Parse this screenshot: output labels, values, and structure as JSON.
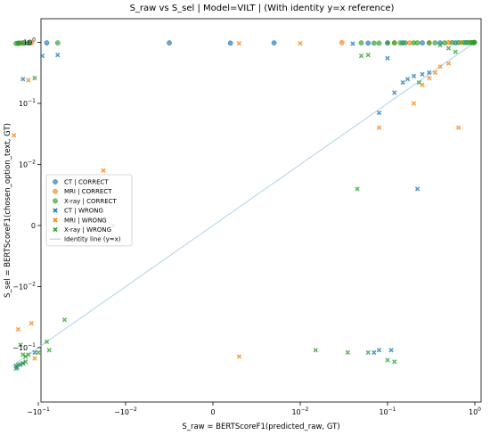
{
  "chart_data": {
    "type": "scatter",
    "title": "S_raw vs S_sel | Model=VILT | (With identity y=x reference)",
    "xlabel": "S_raw = BERTScoreF1(predicted_raw, GT)",
    "ylabel": "S_sel = BERTScoreF1(chosen_option_text, GT)",
    "scale": "symlog",
    "linthresh": 0.01,
    "xlim": [
      -0.2,
      1.0
    ],
    "ylim": [
      -0.25,
      1.4
    ],
    "grid": false,
    "legend_position": "center-left",
    "x_ticks": [
      {
        "value": -0.1,
        "label": "−10",
        "sup": "−1"
      },
      {
        "value": -0.01,
        "label": "−10",
        "sup": "−2"
      },
      {
        "value": 0,
        "label": "0",
        "sup": ""
      },
      {
        "value": 0.01,
        "label": "10",
        "sup": "−2"
      },
      {
        "value": 0.1,
        "label": "10",
        "sup": "−1"
      },
      {
        "value": 1,
        "label": "10",
        "sup": "0"
      }
    ],
    "y_ticks": [
      {
        "value": -0.1,
        "label": "−10",
        "sup": "−1"
      },
      {
        "value": -0.01,
        "label": "−10",
        "sup": "−2"
      },
      {
        "value": 0,
        "label": "0",
        "sup": ""
      },
      {
        "value": 0.01,
        "label": "10",
        "sup": "−2"
      },
      {
        "value": 0.1,
        "label": "10",
        "sup": "−1"
      },
      {
        "value": 1,
        "label": "10",
        "sup": "0"
      }
    ],
    "series": [
      {
        "name": "CT | CORRECT",
        "marker": "circle",
        "color": "#1f77b4",
        "points": [
          [
            -0.17,
            0.97
          ],
          [
            -0.15,
            0.98
          ],
          [
            -0.13,
            0.98
          ],
          [
            -0.08,
            0.98
          ],
          [
            -0.005,
            0.98
          ],
          [
            0.002,
            0.97
          ],
          [
            0.007,
            0.98
          ],
          [
            0.06,
            0.97
          ],
          [
            0.1,
            0.98
          ],
          [
            0.15,
            0.98
          ],
          [
            0.25,
            0.98
          ],
          [
            0.4,
            0.98
          ],
          [
            0.6,
            0.98
          ],
          [
            0.8,
            0.99
          ],
          [
            0.95,
            0.99
          ],
          [
            0.98,
            0.99
          ]
        ]
      },
      {
        "name": "MRI | CORRECT",
        "marker": "circle",
        "color": "#ff7f0e",
        "points": [
          [
            -0.16,
            0.97
          ],
          [
            -0.12,
            0.98
          ],
          [
            0.03,
            0.99
          ],
          [
            0.12,
            0.98
          ],
          [
            0.18,
            0.98
          ],
          [
            0.3,
            0.98
          ],
          [
            0.5,
            0.99
          ],
          [
            0.7,
            0.99
          ],
          [
            0.9,
            0.99
          ],
          [
            0.97,
            0.99
          ]
        ]
      },
      {
        "name": "X-ray | CORRECT",
        "marker": "circle",
        "color": "#2ca02c",
        "points": [
          [
            -0.18,
            0.96
          ],
          [
            -0.17,
            0.96
          ],
          [
            -0.165,
            0.97
          ],
          [
            -0.15,
            0.97
          ],
          [
            -0.13,
            0.98
          ],
          [
            -0.06,
            0.98
          ],
          [
            0.05,
            0.98
          ],
          [
            0.07,
            0.97
          ],
          [
            0.08,
            0.97
          ],
          [
            0.1,
            0.98
          ],
          [
            0.12,
            0.98
          ],
          [
            0.14,
            0.98
          ],
          [
            0.16,
            0.98
          ],
          [
            0.2,
            0.98
          ],
          [
            0.22,
            0.98
          ],
          [
            0.3,
            0.98
          ],
          [
            0.35,
            0.98
          ],
          [
            0.45,
            0.98
          ],
          [
            0.55,
            0.99
          ],
          [
            0.65,
            0.99
          ],
          [
            0.75,
            0.99
          ],
          [
            0.85,
            0.99
          ],
          [
            0.92,
            0.99
          ],
          [
            0.96,
            0.99
          ],
          [
            0.97,
            0.99
          ],
          [
            0.98,
            0.99
          ],
          [
            0.99,
            1.0
          ],
          [
            0.985,
            0.995
          ],
          [
            0.975,
            0.99
          ]
        ]
      },
      {
        "name": "CT | WRONG",
        "marker": "x",
        "color": "#1f77b4",
        "points": [
          [
            -0.15,
            0.25
          ],
          [
            -0.09,
            0.6
          ],
          [
            -0.06,
            0.62
          ],
          [
            0.04,
            0.95
          ],
          [
            0.1,
            0.55
          ],
          [
            0.12,
            0.15
          ],
          [
            0.15,
            0.22
          ],
          [
            0.17,
            0.25
          ],
          [
            0.2,
            0.28
          ],
          [
            0.25,
            0.3
          ],
          [
            0.3,
            0.32
          ],
          [
            0.08,
            0.07
          ],
          [
            0.07,
            -0.12
          ],
          [
            0.08,
            -0.11
          ],
          [
            0.11,
            -0.11
          ],
          [
            -0.014,
            0.0
          ],
          [
            -0.18,
            -0.2
          ],
          [
            -0.175,
            -0.21
          ],
          [
            -0.16,
            -0.19
          ],
          [
            -0.15,
            -0.18
          ],
          [
            -0.11,
            -0.12
          ],
          [
            0.22,
            0.006
          ]
        ]
      },
      {
        "name": "MRI | WRONG",
        "marker": "x",
        "color": "#ff7f0e",
        "points": [
          [
            -0.19,
            0.03
          ],
          [
            -0.13,
            0.24
          ],
          [
            -0.018,
            0.009
          ],
          [
            -0.17,
            -0.05
          ],
          [
            -0.12,
            -0.04
          ],
          [
            -0.11,
            -0.15
          ],
          [
            0.003,
            -0.14
          ],
          [
            0.08,
            0.04
          ],
          [
            0.2,
            0.1
          ],
          [
            0.25,
            0.2
          ],
          [
            0.3,
            0.26
          ],
          [
            0.35,
            0.32
          ],
          [
            0.4,
            0.4
          ],
          [
            0.5,
            0.45
          ],
          [
            0.65,
            0.04
          ],
          [
            0.003,
            0.96
          ],
          [
            0.01,
            0.96
          ]
        ]
      },
      {
        "name": "X-ray | WRONG",
        "marker": "x",
        "color": "#2ca02c",
        "points": [
          [
            -0.16,
            -0.09
          ],
          [
            -0.15,
            -0.13
          ],
          [
            -0.14,
            -0.14
          ],
          [
            -0.13,
            -0.13
          ],
          [
            -0.1,
            -0.12
          ],
          [
            -0.08,
            -0.08
          ],
          [
            -0.075,
            -0.11
          ],
          [
            -0.05,
            -0.035
          ],
          [
            -0.17,
            -0.19
          ],
          [
            -0.15,
            -0.18
          ],
          [
            -0.14,
            -0.17
          ],
          [
            -0.18,
            -0.22
          ],
          [
            -0.11,
            0.26
          ],
          [
            0.015,
            -0.11
          ],
          [
            0.035,
            -0.12
          ],
          [
            0.045,
            0.006
          ],
          [
            0.06,
            -0.12
          ],
          [
            0.1,
            -0.16
          ],
          [
            0.12,
            -0.17
          ],
          [
            0.05,
            0.6
          ],
          [
            0.06,
            0.62
          ],
          [
            0.23,
            0.22
          ],
          [
            0.4,
            0.9
          ],
          [
            0.5,
            0.8
          ],
          [
            0.6,
            0.7
          ]
        ]
      }
    ],
    "identity_line": {
      "name": "Identity line (y=x)",
      "color": "#a6cee3",
      "from": -0.2,
      "to": 1.0
    }
  }
}
